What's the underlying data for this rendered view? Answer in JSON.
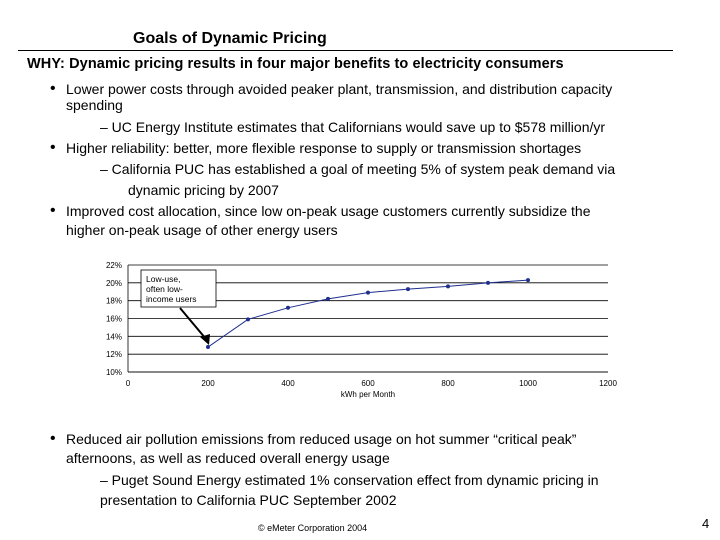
{
  "title": "Goals of Dynamic Pricing",
  "why": "WHY: Dynamic pricing results in four major benefits to electricity consumers",
  "bullets": [
    {
      "lines": [
        "Lower power costs through avoided peaker plant, transmission, and distribution capacity",
        "spending"
      ]
    },
    {
      "sub": "– UC Energy Institute estimates that Californians would save up to $578 million/yr"
    },
    {
      "lines": [
        "Higher reliability: better, more flexible response to supply or transmission shortages"
      ]
    },
    {
      "sub_lines": [
        "– California PUC has established a goal of meeting 5% of system peak demand via",
        "dynamic pricing by 2007"
      ]
    },
    {
      "lines": [
        "Improved cost allocation, since low on-peak usage customers currently subsidize the",
        "higher on-peak usage of other energy users"
      ]
    }
  ],
  "bullet4": {
    "lines": [
      "Reduced air pollution emissions from reduced usage on hot summer “critical peak”",
      "afternoons, as well as reduced overall energy usage"
    ],
    "sub_lines": [
      "– Puget Sound Energy estimated 1% conservation effect from dynamic pricing in",
      "presentation to California PUC September 2002"
    ]
  },
  "chart_data": {
    "type": "line",
    "x": [
      200,
      300,
      400,
      500,
      600,
      700,
      800,
      900,
      1000
    ],
    "y": [
      12.8,
      15.9,
      17.2,
      18.2,
      18.9,
      19.3,
      19.6,
      20.0,
      20.3
    ],
    "xlim": [
      0,
      1200
    ],
    "ylim": [
      10,
      22
    ],
    "xticks": [
      "0",
      "200",
      "400",
      "600",
      "800",
      "1000",
      "1200"
    ],
    "yticks": [
      "22%",
      "20%",
      "18%",
      "16%",
      "14%",
      "12%",
      "10%"
    ],
    "xlabel": "kWh per Month",
    "annotation": [
      "Low-use,",
      "often low-",
      "income users"
    ],
    "series_color": "#1f2f8f"
  },
  "footer": "© eMeter Corporation 2004",
  "page_number": "4"
}
